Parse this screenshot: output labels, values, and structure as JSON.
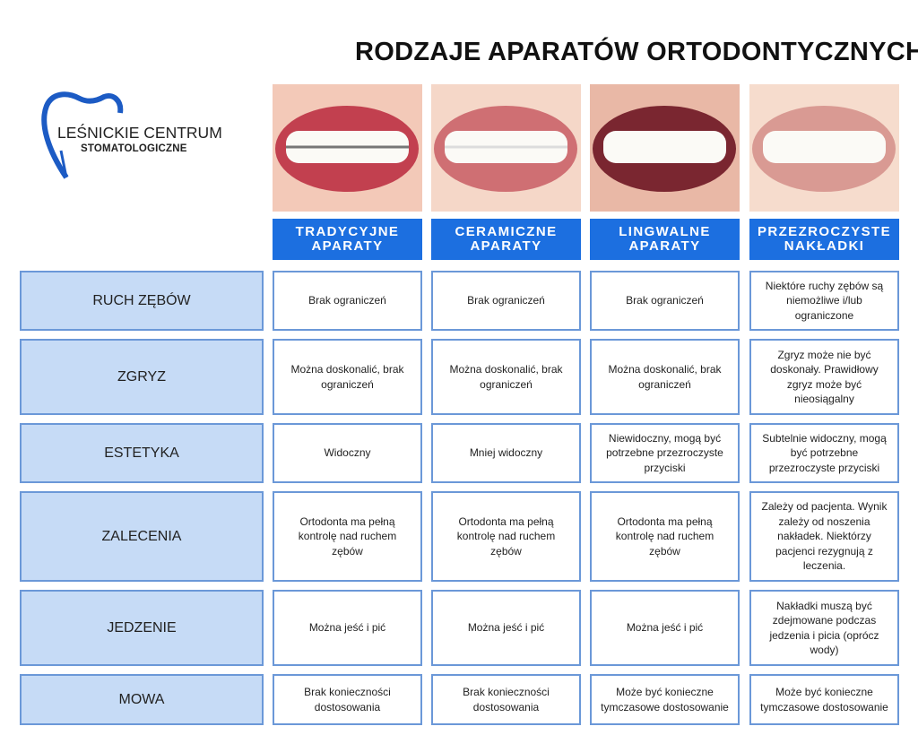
{
  "title": "RODZAJE APARATÓW ORTODONTYCZNYCH",
  "logo": {
    "line1": "LEŚNICKIE CENTRUM",
    "line2": "STOMATOLOGICZNE",
    "color": "#1c5bc4"
  },
  "accent": "#1c6fe0",
  "columns": [
    "TRADYCYJNE\nAPARATY",
    "CERAMICZNE\nAPARATY",
    "LINGWALNE\nAPARATY",
    "PRZEZROCZYSTE\nNAKŁADKI"
  ],
  "rows": [
    {
      "label": "RUCH ZĘBÓW",
      "cells": [
        "Brak ograniczeń",
        "Brak ograniczeń",
        "Brak ograniczeń",
        "Niektóre ruchy zębów są niemożliwe i/lub ograniczone"
      ]
    },
    {
      "label": "ZGRYZ",
      "cells": [
        "Można doskonalić, brak ograniczeń",
        "Można doskonalić, brak ograniczeń",
        "Można doskonalić, brak ograniczeń",
        "Zgryz może nie być doskonały. Prawidłowy zgryz może być nieosiągalny"
      ]
    },
    {
      "label": "ESTETYKA",
      "cells": [
        "Widoczny",
        "Mniej widoczny",
        "Niewidoczny, mogą być potrzebne przezroczyste przyciski",
        "Subtelnie widoczny, mogą być potrzebne przezroczyste przyciski"
      ]
    },
    {
      "label": "ZALECENIA",
      "cells": [
        "Ortodonta ma pełną kontrolę nad ruchem zębów",
        "Ortodonta ma pełną kontrolę nad ruchem zębów",
        "Ortodonta ma pełną kontrolę nad ruchem zębów",
        "Zależy od pacjenta. Wynik zależy od noszenia nakładek. Niektórzy pacjenci rezygnują z leczenia."
      ]
    },
    {
      "label": "JEDZENIE",
      "cells": [
        "Można jeść i pić",
        "Można jeść i pić",
        "Można jeść i pić",
        "Nakładki muszą być zdejmowane podczas jedzenia i picia (oprócz wody)"
      ]
    },
    {
      "label": "MOWA",
      "cells": [
        "Brak konieczności dostosowania",
        "Brak konieczności dostosowania",
        "Może być konieczne tymczasowe dostosowanie",
        "Może być konieczne tymczasowe dostosowanie"
      ]
    }
  ]
}
